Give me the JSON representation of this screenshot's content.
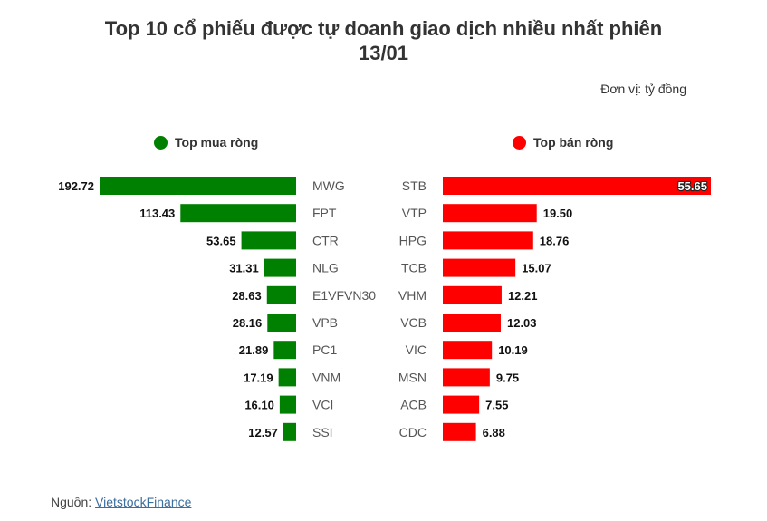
{
  "title_line1": "Top 10 cổ phiếu được tự doanh giao dịch nhiều nhất phiên",
  "title_line2": "13/01",
  "unit": "Đơn vị: tỷ đồng",
  "colors": {
    "buy": "#008000",
    "sell": "#ff0000"
  },
  "legend": {
    "buy": "Top mua ròng",
    "sell": "Top bán ròng"
  },
  "source": {
    "label": "Nguồn: ",
    "link_text": "VietstockFinance"
  },
  "chart_data": {
    "type": "bar",
    "title": "Top 10 cổ phiếu được tự doanh giao dịch nhiều nhất phiên 13/01",
    "unit": "Đơn vị: tỷ đồng",
    "series": [
      {
        "name": "Top mua ròng",
        "categories": [
          "MWG",
          "FPT",
          "CTR",
          "NLG",
          "E1VFVN30",
          "VPB",
          "PC1",
          "VNM",
          "VCI",
          "SSI"
        ],
        "values": [
          192.72,
          113.43,
          53.65,
          31.31,
          28.63,
          28.16,
          21.89,
          17.19,
          16.1,
          12.57
        ],
        "labels": [
          "192.72",
          "113.43",
          "53.65",
          "31.31",
          "28.63",
          "28.16",
          "21.89",
          "17.19",
          "16.10",
          "12.57"
        ]
      },
      {
        "name": "Top bán ròng",
        "categories": [
          "STB",
          "VTP",
          "HPG",
          "TCB",
          "VHM",
          "VCB",
          "VIC",
          "MSN",
          "ACB",
          "CDC"
        ],
        "values": [
          55.65,
          19.5,
          18.76,
          15.07,
          12.21,
          12.03,
          10.19,
          9.75,
          7.55,
          6.88
        ],
        "labels": [
          "55.65",
          "19.50",
          "18.76",
          "15.07",
          "12.21",
          "12.03",
          "10.19",
          "9.75",
          "7.55",
          "6.88"
        ]
      }
    ]
  }
}
